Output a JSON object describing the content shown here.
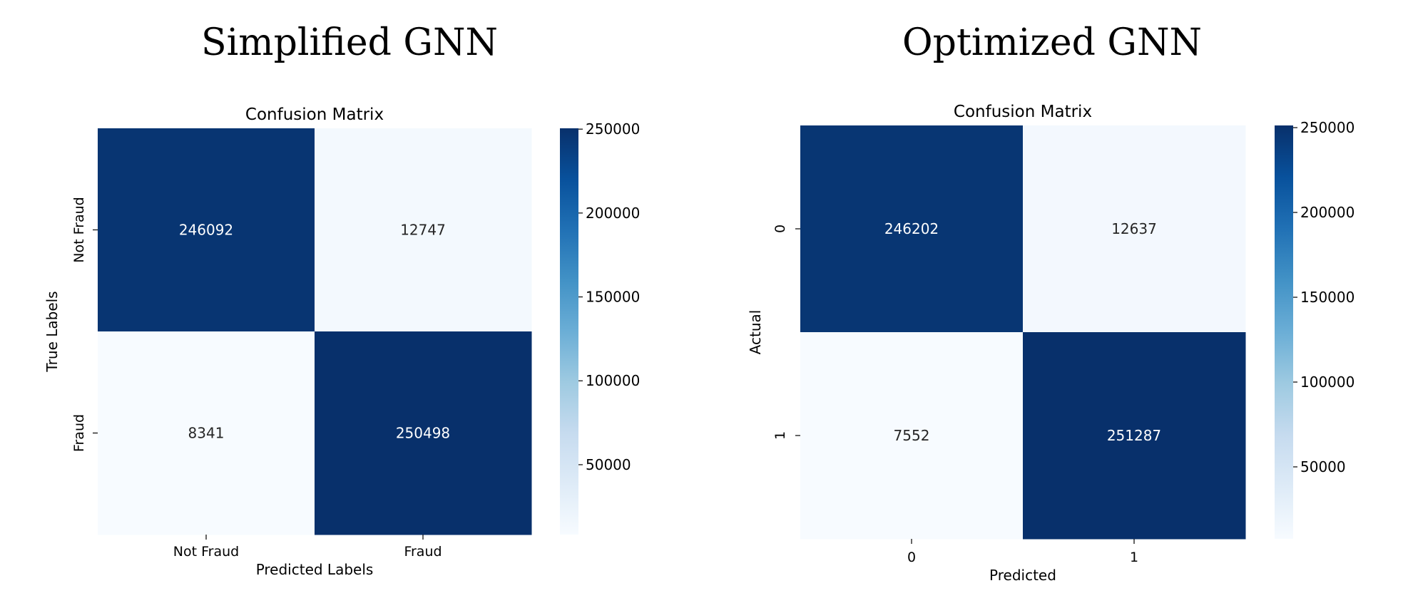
{
  "panels": [
    {
      "title": "Simplified GNN"
    },
    {
      "title": "Optimized GNN"
    }
  ],
  "chart_data": [
    {
      "type": "heatmap",
      "title": "Confusion Matrix",
      "xlabel": "Predicted Labels",
      "ylabel": "True Labels",
      "x_categories": [
        "Not Fraud",
        "Fraud"
      ],
      "y_categories": [
        "Not Fraud",
        "Fraud"
      ],
      "values": [
        [
          246092,
          12747
        ],
        [
          8341,
          250498
        ]
      ],
      "colorbar": {
        "ticks": [
          50000,
          100000,
          150000,
          200000,
          250000
        ],
        "range": [
          8341,
          250498
        ],
        "colormap": "Blues"
      }
    },
    {
      "type": "heatmap",
      "title": "Confusion Matrix",
      "xlabel": "Predicted",
      "ylabel": "Actual",
      "x_categories": [
        "0",
        "1"
      ],
      "y_categories": [
        "0",
        "1"
      ],
      "values": [
        [
          246202,
          12637
        ],
        [
          7552,
          251287
        ]
      ],
      "colorbar": {
        "ticks": [
          50000,
          100000,
          150000,
          200000,
          250000
        ],
        "range": [
          7552,
          251287
        ],
        "colormap": "Blues"
      }
    }
  ],
  "colors": {
    "blues_stops": [
      "#f7fbff",
      "#deebf7",
      "#c6dbef",
      "#9ecae1",
      "#6baed6",
      "#4292c6",
      "#2171b5",
      "#08519c",
      "#08306b"
    ],
    "text_dark": "#262626",
    "text_light": "#ffffff"
  }
}
